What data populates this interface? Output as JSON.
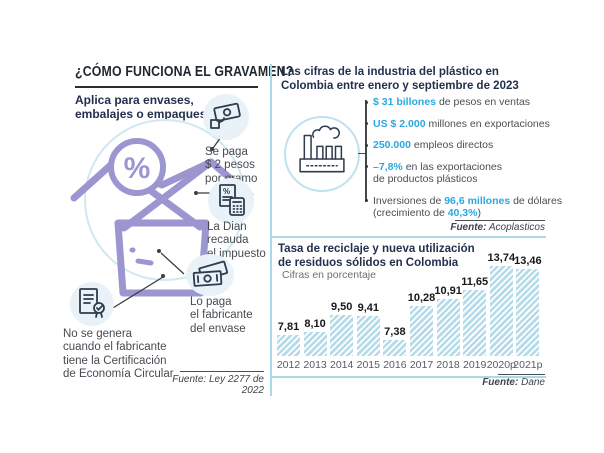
{
  "colors": {
    "accent": "#29a9e0",
    "navy": "#22304d",
    "purple": "#9b96cf",
    "bar_fill": "#b5dbe9",
    "light_line": "#a9d8e9",
    "body_text": "#4a4f54"
  },
  "left_panel": {
    "title": "¿CÓMO FUNCIONA EL GRAVAMEN?",
    "subtitle": "Aplica para envases,\nembalajes o empaques",
    "badge": "%",
    "steps": [
      {
        "icon": "hand-money-icon",
        "text": "Se paga\n$ 2 pesos\npor gramo"
      },
      {
        "icon": "receipt-calculator-icon",
        "text": "La Dian\nrecauda\nel impuesto"
      },
      {
        "icon": "banknotes-icon",
        "text": "Lo paga\nel fabricante\ndel envase"
      },
      {
        "icon": "certificate-icon",
        "text": "No se genera\ncuando el fabricante\ntiene la Certificación\nde Economía Circular"
      }
    ],
    "source": "Fuente: Ley 2277 de 2022"
  },
  "stats_panel": {
    "title": "Las cifras de la industria del plástico en\nColombia entre enero y septiembre de 2023",
    "icon": "factory-icon",
    "items": [
      {
        "segments": [
          {
            "t": "$ 31 billones",
            "hl": true
          },
          {
            "t": " de pesos en ventas",
            "hl": false
          }
        ]
      },
      {
        "segments": [
          {
            "t": "US $ 2.000",
            "hl": true
          },
          {
            "t": " millones en exportaciones",
            "hl": false
          }
        ]
      },
      {
        "segments": [
          {
            "t": "250.000",
            "hl": true
          },
          {
            "t": " empleos directos",
            "hl": false
          }
        ]
      },
      {
        "segments": [
          {
            "t": "–7,8%",
            "hl": true
          },
          {
            "t": " en las exportaciones\nde productos plásticos",
            "hl": false
          }
        ]
      },
      {
        "segments": [
          {
            "t": "Inversiones de ",
            "hl": false
          },
          {
            "t": "96,6 millones",
            "hl": true
          },
          {
            "t": " de dólares\n(crecimiento de ",
            "hl": false
          },
          {
            "t": "40,3%",
            "hl": true
          },
          {
            "t": ")",
            "hl": false
          }
        ]
      }
    ],
    "source_label": "Fuente:",
    "source_name": " Acoplasticos"
  },
  "chart_data": {
    "type": "bar",
    "title": "Tasa de reciclaje y nueva utilización\nde residuos sólidos en Colombia",
    "subtitle": "Cifras en porcentaje",
    "categories": [
      "2012",
      "2013",
      "2014",
      "2015",
      "2016",
      "2017",
      "2018",
      "2019",
      "2020p",
      "2021p"
    ],
    "values": [
      7.81,
      8.1,
      9.5,
      9.41,
      7.38,
      10.28,
      10.91,
      11.65,
      13.74,
      13.46
    ],
    "value_labels": [
      "7,81",
      "8,10",
      "9,50",
      "9,41",
      "7,38",
      "10,28",
      "10,91",
      "11,65",
      "13,74",
      "13,46"
    ],
    "xlabel": "",
    "ylabel": "",
    "ylim": [
      6,
      14.5
    ],
    "grid": false,
    "legend": "none",
    "source_label": "Fuente:",
    "source_name": " Dane"
  }
}
